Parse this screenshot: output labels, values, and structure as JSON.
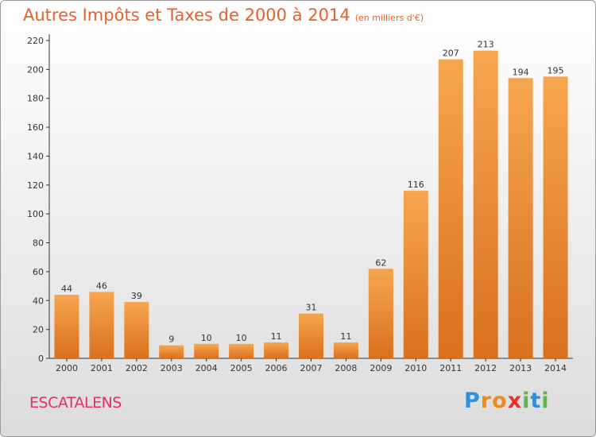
{
  "header": {
    "title": "Autres Impôts et Taxes de 2000 à 2014",
    "unit": "(en milliers d'€)"
  },
  "commune": "ESCATALENS",
  "brand": {
    "letters": [
      "P",
      "r",
      "o",
      "x",
      "i",
      "t",
      "i"
    ],
    "colors": [
      "#2f8fd8",
      "#f08a1c",
      "#f08a1c",
      "#e8302c",
      "#58b848",
      "#2f8fd8",
      "#58b848"
    ]
  },
  "colors": {
    "bar_light": "#f7a64f",
    "bar_dark": "#d9701e",
    "title": "#e8602c",
    "commune": "#e0306a"
  },
  "chart_data": {
    "type": "bar",
    "title": "Autres Impôts et Taxes de 2000 à 2014",
    "categories": [
      "2000",
      "2001",
      "2002",
      "2003",
      "2004",
      "2005",
      "2006",
      "2007",
      "2008",
      "2009",
      "2010",
      "2011",
      "2012",
      "2013",
      "2014"
    ],
    "values": [
      44,
      46,
      39,
      9,
      10,
      10,
      11,
      31,
      11,
      62,
      116,
      207,
      213,
      194,
      195
    ],
    "ylim": [
      0,
      220
    ],
    "yticks": [
      0,
      20,
      40,
      60,
      80,
      100,
      120,
      140,
      160,
      180,
      200,
      220
    ],
    "grid": false,
    "data_labels": true
  }
}
